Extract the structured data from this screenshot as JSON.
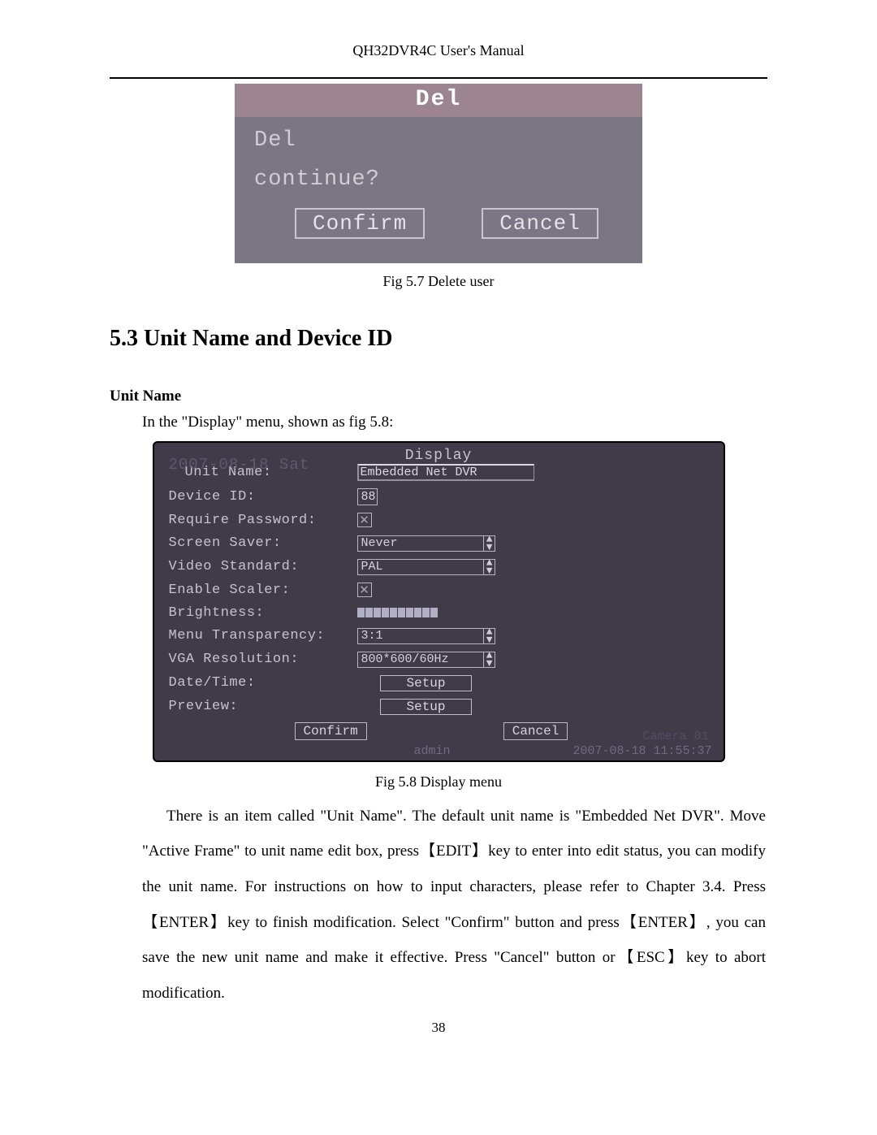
{
  "header": "QH32DVR4C User's Manual",
  "fig57": {
    "title": "Del",
    "line1": "Del",
    "line2": "continue?",
    "confirm": "Confirm",
    "cancel": "Cancel"
  },
  "caption57": "Fig 5.7 Delete user",
  "section": "5.3    Unit Name and Device ID",
  "subtitle": "Unit Name",
  "intro": "In the \"Display\" menu, shown as fig 5.8:",
  "fig58": {
    "title": "Display",
    "overlay": "2007-08-18 Sat",
    "labels": {
      "unit_name": "Unit Name:",
      "device_id": "Device ID:",
      "require_password": "Require Password:",
      "screen_saver": "Screen Saver:",
      "video_standard": "Video Standard:",
      "enable_scaler": "Enable Scaler:",
      "brightness": "Brightness:",
      "menu_transparency": "Menu Transparency:",
      "vga_resolution": "VGA Resolution:",
      "date_time": "Date/Time:",
      "preview": "Preview:"
    },
    "values": {
      "unit_name": "Embedded Net DVR",
      "device_id": "88",
      "screen_saver": "Never",
      "video_standard": "PAL",
      "menu_transparency": "3:1",
      "vga_resolution": "800*600/60Hz",
      "setup1": "Setup",
      "setup2": "Setup"
    },
    "confirm": "Confirm",
    "cancel": "Cancel",
    "status_user": "admin",
    "status_time": "2007-08-18 11:55:37",
    "cam_label": "Camera 01",
    "brightness_segments": 10,
    "brightness_lit": 10
  },
  "caption58": "Fig 5.8 Display menu",
  "para": "There is an item called \"Unit Name\". The default unit name is \"Embedded Net DVR\". Move \"Active Frame\" to unit name edit box, press【EDIT】key to enter into edit status, you can modify the unit name. For instructions on how to input characters, please refer to Chapter 3.4. Press【ENTER】key to finish modification. Select \"Confirm\" button and press【ENTER】, you can save the new unit name and make it effective. Press \"Cancel\" button or【ESC】key to abort modification.",
  "pagenum": "38"
}
